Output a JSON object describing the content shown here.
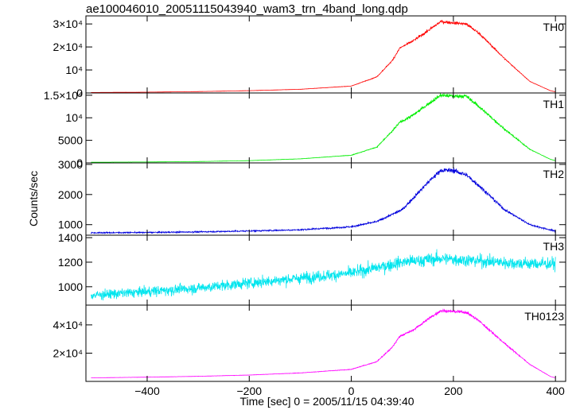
{
  "title": "ae100046010_20051115043940_wam3_trn_4band_long.qdp",
  "chart_data": {
    "type": "line",
    "ylabel": "Counts/sec",
    "xlabel": "Time [sec] 0 = 2005/11/15 04:39:40",
    "xlim": [
      -520,
      420
    ],
    "x_ticks": [
      {
        "value": -400,
        "label": "−400"
      },
      {
        "value": -200,
        "label": "−200"
      },
      {
        "value": 0,
        "label": "0"
      },
      {
        "value": 200,
        "label": "200"
      },
      {
        "value": 400,
        "label": "400"
      }
    ],
    "panels": [
      {
        "series_name": "TH0",
        "color": "#ff0000",
        "ylim": [
          0,
          33500
        ],
        "ticks": [
          {
            "value": 0,
            "label": "0"
          },
          {
            "value": 10000,
            "label": "10⁴"
          },
          {
            "value": 20000,
            "label": "2×10⁴"
          },
          {
            "value": 30000,
            "label": "3×10⁴"
          }
        ],
        "profile": [
          [
            -510,
            200
          ],
          [
            -400,
            350
          ],
          [
            -300,
            600
          ],
          [
            -200,
            1000
          ],
          [
            -100,
            1600
          ],
          [
            0,
            3000
          ],
          [
            50,
            7000
          ],
          [
            80,
            14000
          ],
          [
            95,
            19500
          ],
          [
            120,
            22500
          ],
          [
            150,
            27000
          ],
          [
            175,
            31000
          ],
          [
            200,
            30500
          ],
          [
            225,
            30000
          ],
          [
            250,
            26000
          ],
          [
            300,
            15000
          ],
          [
            350,
            5000
          ],
          [
            390,
            1000
          ],
          [
            400,
            500
          ]
        ],
        "noise": 0.015
      },
      {
        "series_name": "TH1",
        "color": "#00ee00",
        "ylim": [
          0,
          15500
        ],
        "ticks": [
          {
            "value": 0,
            "label": "0"
          },
          {
            "value": 5000,
            "label": "5000"
          },
          {
            "value": 10000,
            "label": "10⁴"
          },
          {
            "value": 15000,
            "label": "1.5×10⁴"
          }
        ],
        "profile": [
          [
            -510,
            150
          ],
          [
            -400,
            200
          ],
          [
            -300,
            300
          ],
          [
            -200,
            500
          ],
          [
            -100,
            900
          ],
          [
            0,
            1700
          ],
          [
            50,
            3500
          ],
          [
            80,
            7000
          ],
          [
            95,
            9000
          ],
          [
            120,
            10500
          ],
          [
            150,
            13000
          ],
          [
            175,
            15000
          ],
          [
            200,
            14800
          ],
          [
            225,
            14800
          ],
          [
            250,
            12500
          ],
          [
            300,
            7500
          ],
          [
            350,
            3000
          ],
          [
            390,
            800
          ],
          [
            400,
            500
          ]
        ],
        "noise": 0.02
      },
      {
        "series_name": "TH2",
        "color": "#0000dd",
        "ylim": [
          650,
          3050
        ],
        "ticks": [
          {
            "value": 1000,
            "label": "1000"
          },
          {
            "value": 2000,
            "label": "2000"
          },
          {
            "value": 3000,
            "label": "3000"
          }
        ],
        "profile": [
          [
            -510,
            730
          ],
          [
            -400,
            740
          ],
          [
            -300,
            760
          ],
          [
            -200,
            790
          ],
          [
            -100,
            830
          ],
          [
            0,
            930
          ],
          [
            50,
            1100
          ],
          [
            100,
            1500
          ],
          [
            150,
            2400
          ],
          [
            175,
            2800
          ],
          [
            200,
            2800
          ],
          [
            225,
            2650
          ],
          [
            250,
            2300
          ],
          [
            300,
            1500
          ],
          [
            350,
            1000
          ],
          [
            400,
            780
          ]
        ],
        "noise": 0.02
      },
      {
        "series_name": "TH3",
        "color": "#00e5ee",
        "ylim": [
          850,
          1420
        ],
        "ticks": [
          {
            "value": 1000,
            "label": "1000"
          },
          {
            "value": 1200,
            "label": "1200"
          },
          {
            "value": 1400,
            "label": "1400"
          }
        ],
        "profile": [
          [
            -510,
            930
          ],
          [
            -400,
            960
          ],
          [
            -300,
            990
          ],
          [
            -200,
            1030
          ],
          [
            -100,
            1070
          ],
          [
            0,
            1110
          ],
          [
            100,
            1200
          ],
          [
            175,
            1230
          ],
          [
            250,
            1210
          ],
          [
            330,
            1190
          ],
          [
            400,
            1185
          ]
        ],
        "noise": 0.03
      },
      {
        "series_name": "TH0123",
        "color": "#ff00ff",
        "ylim": [
          0,
          54000
        ],
        "ticks": [
          {
            "value": 20000,
            "label": "2×10⁴"
          },
          {
            "value": 40000,
            "label": "4×10⁴"
          }
        ],
        "profile": [
          [
            -510,
            2500
          ],
          [
            -400,
            3000
          ],
          [
            -300,
            3600
          ],
          [
            -200,
            4500
          ],
          [
            -100,
            6000
          ],
          [
            0,
            8500
          ],
          [
            50,
            14000
          ],
          [
            80,
            24000
          ],
          [
            95,
            32000
          ],
          [
            120,
            36000
          ],
          [
            150,
            44000
          ],
          [
            175,
            50000
          ],
          [
            200,
            49500
          ],
          [
            225,
            49000
          ],
          [
            250,
            43000
          ],
          [
            300,
            27000
          ],
          [
            350,
            12000
          ],
          [
            390,
            3500
          ],
          [
            400,
            2500
          ]
        ],
        "noise": 0.015
      }
    ]
  }
}
